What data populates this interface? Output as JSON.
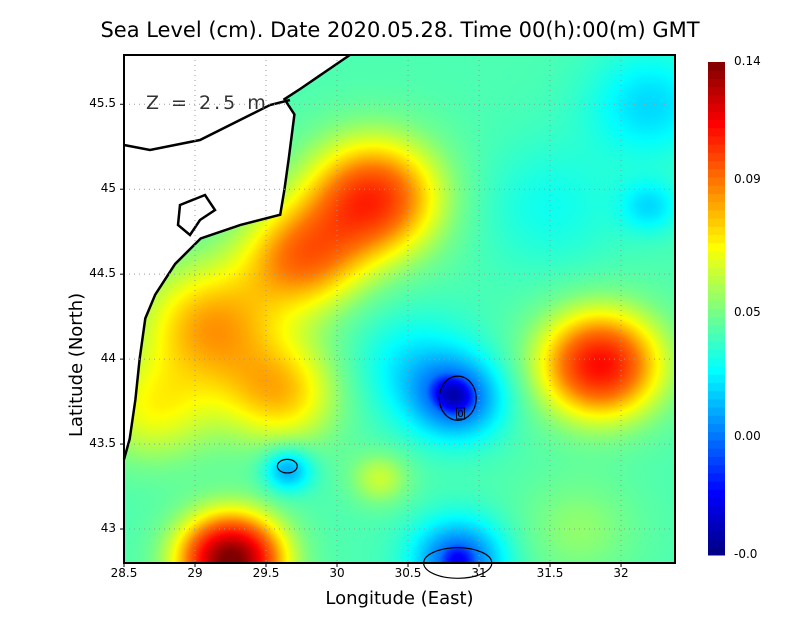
{
  "chart_data": {
    "type": "heatmap",
    "title": "Sea Level (cm). Date 2020.05.28. Time 00(h):00(m) GMT",
    "xlabel": "Longitude (East)",
    "ylabel": "Latitude (North)",
    "annotation": "Z = 2.5 m",
    "contour_label": "0",
    "xlim": [
      28.5,
      32.38
    ],
    "ylim": [
      42.8,
      45.79
    ],
    "xticks": [
      "28.5",
      "29",
      "29.5",
      "30",
      "30.5",
      "31",
      "31.5",
      "32"
    ],
    "xtick_values": [
      28.5,
      29,
      29.5,
      30,
      30.5,
      31,
      31.5,
      32
    ],
    "yticks": [
      "43",
      "43.5",
      "44",
      "44.5",
      "45",
      "45.5"
    ],
    "ytick_values": [
      43,
      43.5,
      44,
      44.5,
      45,
      45.5
    ],
    "grid": true,
    "colorbar": {
      "labels": [
        "0.14",
        "0.09",
        "0.05",
        "0.00",
        "-0.0"
      ],
      "label_values": [
        0.14,
        0.09,
        0.05,
        0.0,
        -0.015
      ],
      "label_positions_fraction": [
        1.0,
        0.76,
        0.49,
        0.24,
        0.0
      ],
      "colormap": "jet"
    },
    "background_value": 0.042,
    "features": [
      {
        "lon": 30.25,
        "lat": 44.95,
        "amp": 0.062,
        "sigma": 0.33
      },
      {
        "lon": 29.75,
        "lat": 44.6,
        "amp": 0.045,
        "sigma": 0.3
      },
      {
        "lon": 29.1,
        "lat": 44.2,
        "amp": 0.04,
        "sigma": 0.35
      },
      {
        "lon": 29.6,
        "lat": 43.8,
        "amp": 0.035,
        "sigma": 0.3
      },
      {
        "lon": 28.7,
        "lat": 43.7,
        "amp": 0.025,
        "sigma": 0.3
      },
      {
        "lon": 31.85,
        "lat": 43.97,
        "amp": 0.07,
        "sigma": 0.3
      },
      {
        "lon": 29.25,
        "lat": 42.82,
        "amp": 0.1,
        "sigma": 0.25
      },
      {
        "lon": 30.85,
        "lat": 43.77,
        "amp": -0.045,
        "sigma": 0.22
      },
      {
        "lon": 30.55,
        "lat": 43.95,
        "amp": -0.02,
        "sigma": 0.3
      },
      {
        "lon": 29.65,
        "lat": 43.35,
        "amp": -0.035,
        "sigma": 0.12
      },
      {
        "lon": 30.85,
        "lat": 42.82,
        "amp": -0.05,
        "sigma": 0.22
      },
      {
        "lon": 32.2,
        "lat": 45.5,
        "amp": -0.022,
        "sigma": 0.3
      },
      {
        "lon": 31.5,
        "lat": 44.9,
        "amp": -0.012,
        "sigma": 0.35
      },
      {
        "lon": 32.2,
        "lat": 44.9,
        "amp": -0.02,
        "sigma": 0.15
      },
      {
        "lon": 31.7,
        "lat": 43.0,
        "amp": 0.012,
        "sigma": 0.3
      },
      {
        "lon": 30.3,
        "lat": 43.3,
        "amp": 0.02,
        "sigma": 0.15
      }
    ],
    "contours": [
      {
        "lon": 30.85,
        "lat": 43.77,
        "rlon": 0.13,
        "rlat": 0.13
      },
      {
        "lon": 29.65,
        "lat": 43.37,
        "rlon": 0.07,
        "rlat": 0.04
      },
      {
        "lon": 30.85,
        "lat": 42.8,
        "rlon": 0.24,
        "rlat": 0.09
      }
    ],
    "coastline": [
      [
        30.09,
        45.79
      ],
      [
        29.74,
        45.59
      ],
      [
        29.63,
        45.53
      ],
      [
        29.7,
        45.44
      ],
      [
        29.66,
        45.18
      ],
      [
        29.63,
        45.0
      ],
      [
        29.6,
        44.85
      ],
      [
        29.32,
        44.79
      ],
      [
        29.04,
        44.71
      ],
      [
        28.86,
        44.56
      ],
      [
        28.72,
        44.38
      ],
      [
        28.65,
        44.24
      ],
      [
        28.61,
        44.0
      ],
      [
        28.58,
        43.76
      ],
      [
        28.54,
        43.53
      ],
      [
        28.5,
        43.41
      ]
    ]
  }
}
